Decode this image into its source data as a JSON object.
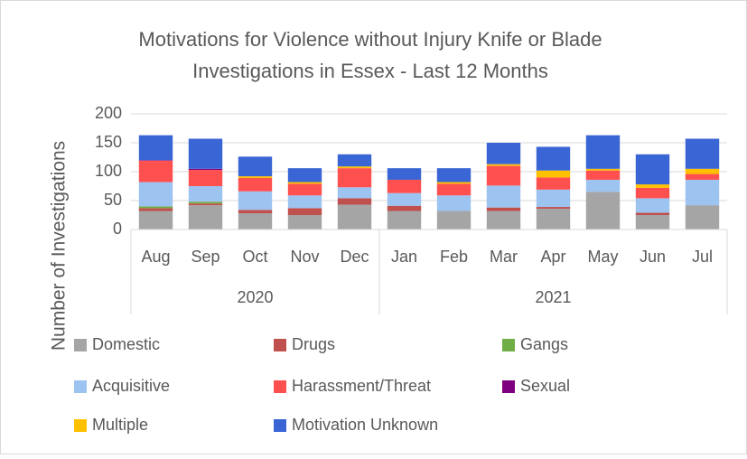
{
  "chart_data": {
    "type": "stacked_bar",
    "title": [
      "Motivations for Violence without Injury Knife or Blade",
      "Investigations in Essex - Last 12 Months"
    ],
    "y_label": "Number of Investigations",
    "categories": [
      "Aug",
      "Sep",
      "Oct",
      "Nov",
      "Dec",
      "Jan",
      "Feb",
      "Mar",
      "Apr",
      "May",
      "Jun",
      "Jul"
    ],
    "groups": [
      {
        "label": "2020",
        "span": 5
      },
      {
        "label": "2021",
        "span": 7
      }
    ],
    "ylim": [
      0,
      200
    ],
    "yticks": [
      0,
      50,
      100,
      150,
      200
    ],
    "grid": true,
    "series": [
      {
        "name": "Domestic",
        "color": "#a5a5a5",
        "values": [
          32,
          42,
          28,
          25,
          43,
          32,
          32,
          32,
          36,
          65,
          25,
          42
        ]
      },
      {
        "name": "Drugs",
        "color": "#c0504d",
        "values": [
          5,
          3,
          6,
          12,
          11,
          9,
          0,
          6,
          3,
          0,
          4,
          0
        ]
      },
      {
        "name": "Gangs",
        "color": "#70ad47",
        "values": [
          3,
          3,
          0,
          0,
          0,
          0,
          0,
          0,
          0,
          0,
          0,
          0
        ]
      },
      {
        "name": "Acquisitive",
        "color": "#9dc3f0",
        "values": [
          42,
          27,
          32,
          22,
          19,
          22,
          27,
          38,
          30,
          21,
          25,
          44
        ]
      },
      {
        "name": "Harassment/Threat",
        "color": "#ff5050",
        "values": [
          37,
          28,
          23,
          20,
          33,
          23,
          20,
          34,
          21,
          16,
          18,
          10
        ]
      },
      {
        "name": "Sexual",
        "color": "#7f007f",
        "values": [
          1,
          2,
          0,
          0,
          0,
          0,
          0,
          0,
          0,
          0,
          0,
          0
        ]
      },
      {
        "name": "Multiple",
        "color": "#ffc000",
        "values": [
          0,
          0,
          3,
          3,
          3,
          0,
          3,
          3,
          12,
          3,
          6,
          9
        ]
      },
      {
        "name": "Motivation Unknown",
        "color": "#3a65d4",
        "values": [
          43,
          52,
          34,
          24,
          21,
          20,
          24,
          37,
          41,
          58,
          52,
          52
        ]
      }
    ]
  }
}
